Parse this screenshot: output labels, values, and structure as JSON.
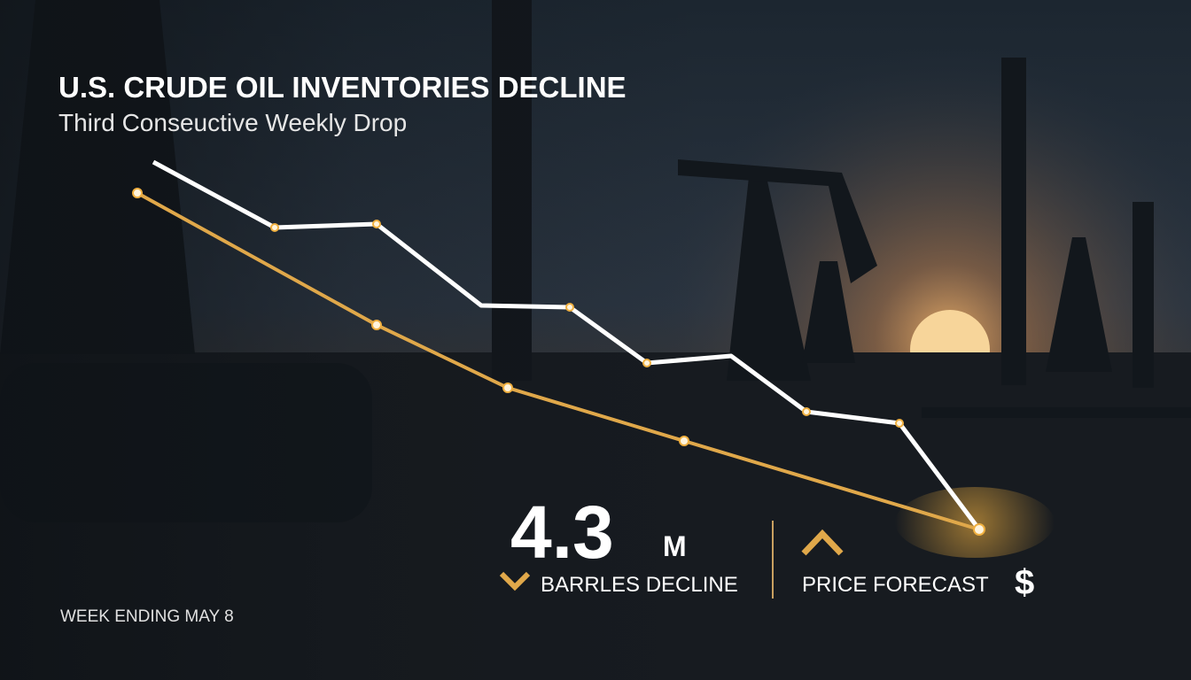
{
  "header": {
    "title": "U.S. CRUDE OIL INVENTORIES DECLINE",
    "subtitle": "Third Conseuctive Weekly Drop"
  },
  "stat": {
    "value": "4.3",
    "unit": "M",
    "label": "BARRLES DECLINE"
  },
  "forecast": {
    "label": "PRICE FORECAST",
    "symbol": "$"
  },
  "footer": {
    "date": "WEEK ENDING MAY 8"
  }
}
